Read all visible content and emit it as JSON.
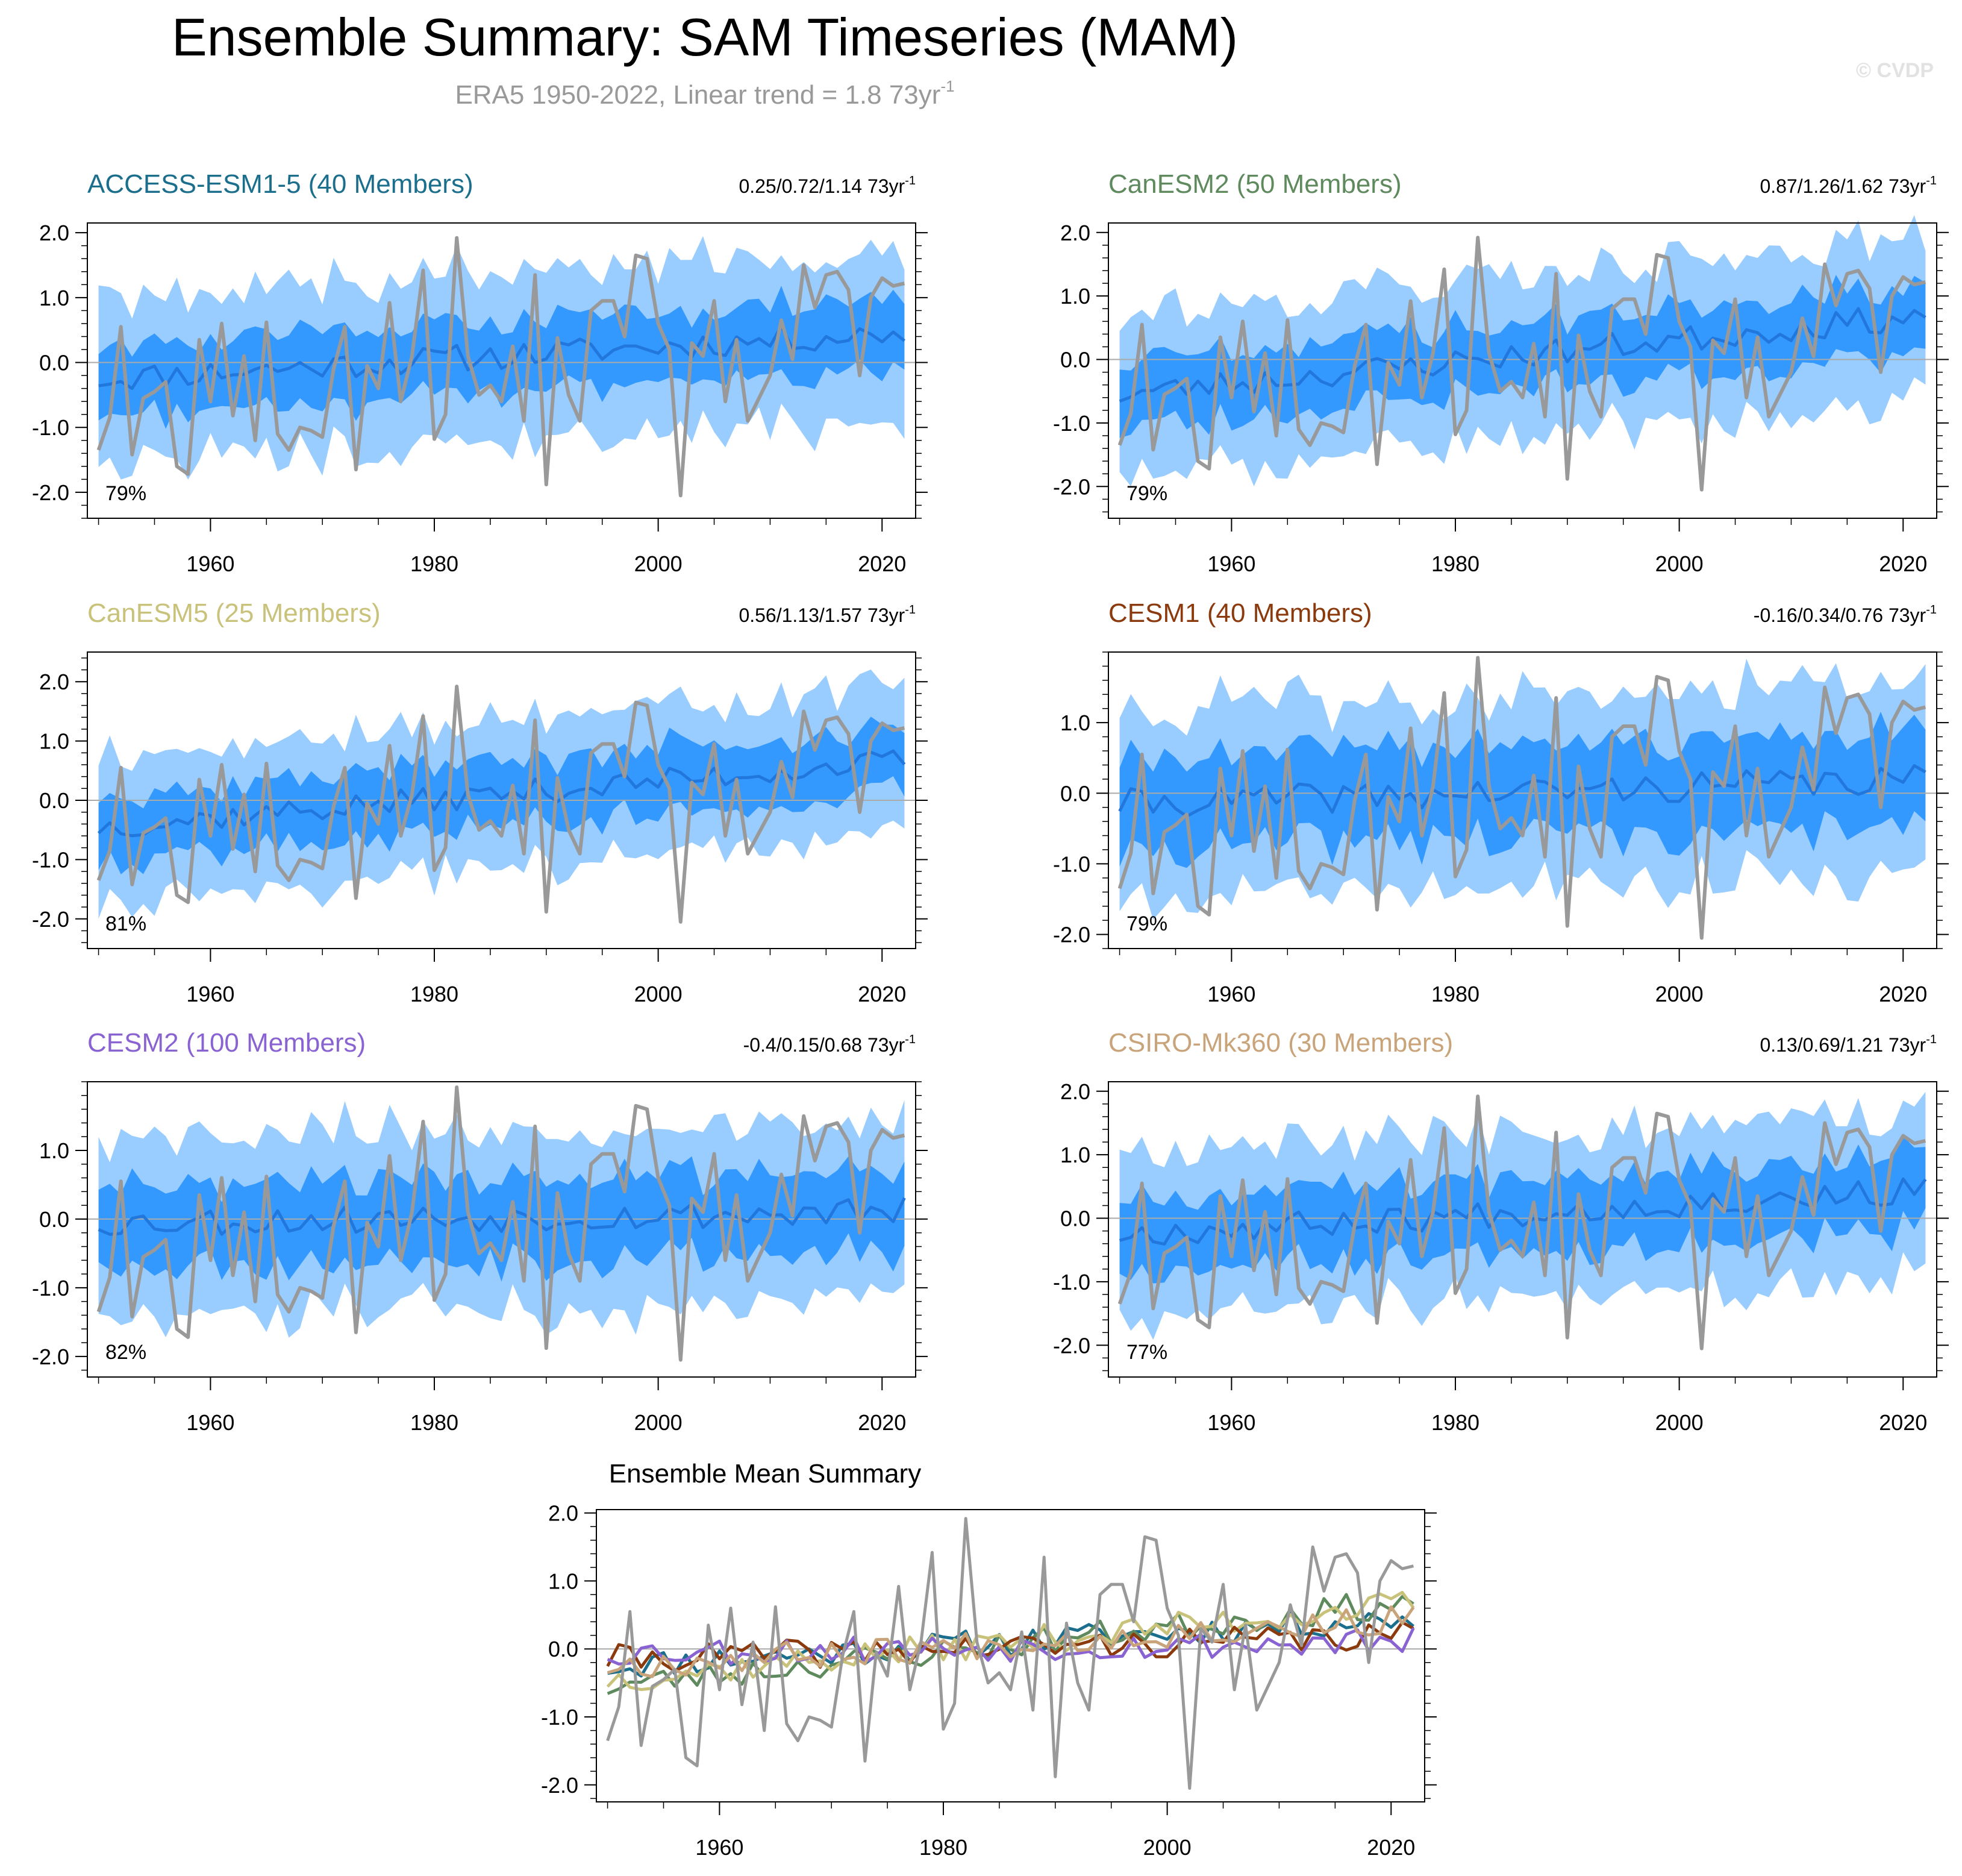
{
  "figure": {
    "title": "Ensemble Summary: SAM Timeseries (MAM)",
    "subtitle": "ERA5 1950-2022, Linear trend = 1.8 73yr",
    "subtitle_sup": "-1",
    "watermark": "© CVDP",
    "trend_unit": "73yr",
    "trend_unit_sup": "-1"
  },
  "colors": {
    "inner_band": "#3399FF",
    "outer_band": "#99CCFF",
    "ensemble_mean": "#2277DD",
    "observed": "#999999",
    "zero_line": "#AAAAAA"
  },
  "observed": {
    "name": "ERA5",
    "x": [
      1950,
      1951,
      1952,
      1953,
      1954,
      1955,
      1956,
      1957,
      1958,
      1959,
      1960,
      1961,
      1962,
      1963,
      1964,
      1965,
      1966,
      1967,
      1968,
      1969,
      1970,
      1971,
      1972,
      1973,
      1974,
      1975,
      1976,
      1977,
      1978,
      1979,
      1980,
      1981,
      1982,
      1983,
      1984,
      1985,
      1986,
      1987,
      1988,
      1989,
      1990,
      1991,
      1992,
      1993,
      1994,
      1995,
      1996,
      1997,
      1998,
      1999,
      2000,
      2001,
      2002,
      2003,
      2004,
      2005,
      2006,
      2007,
      2008,
      2009,
      2010,
      2011,
      2012,
      2013,
      2014,
      2015,
      2016,
      2017,
      2018,
      2019,
      2020,
      2021,
      2022
    ],
    "values": [
      -1.35,
      -0.85,
      0.55,
      -1.42,
      -0.55,
      -0.45,
      -0.3,
      -1.6,
      -1.72,
      0.35,
      -0.6,
      0.6,
      -0.82,
      0.1,
      -1.2,
      0.62,
      -1.1,
      -1.35,
      -1.0,
      -1.05,
      -1.15,
      -0.1,
      0.55,
      -1.65,
      -0.05,
      -0.4,
      0.92,
      -0.6,
      0.1,
      1.42,
      -1.18,
      -0.8,
      1.92,
      0.1,
      -0.5,
      -0.35,
      -0.6,
      0.25,
      -0.9,
      1.35,
      -1.88,
      0.38,
      -0.5,
      -0.9,
      0.8,
      0.95,
      0.95,
      0.4,
      1.65,
      1.6,
      0.6,
      0.2,
      -2.05,
      0.3,
      0.1,
      0.95,
      -0.6,
      0.35,
      -0.9,
      -0.55,
      -0.2,
      0.65,
      0.05,
      1.5,
      0.85,
      1.35,
      1.4,
      1.12,
      -0.2,
      1.0,
      1.3,
      1.18,
      1.22
    ]
  },
  "chart_data": [
    {
      "type": "line",
      "title": "ACCESS-ESM1-5 (40 Members)",
      "title_color": "#1B6E8C",
      "trend": "0.25/0.72/1.14",
      "percent": "79%",
      "ylim": [
        -2.4,
        2.15
      ],
      "yticks": [
        2.0,
        1.0,
        0.0,
        -1.0,
        -2.0
      ],
      "ytick_labels": [
        "2.0",
        "1.0",
        "0.0",
        "-1.0",
        "-2.0"
      ],
      "xlim": [
        1949,
        2023
      ],
      "xticks": [
        1960,
        1980,
        2000,
        2020
      ],
      "xtick_labels": [
        "1960",
        "1980",
        "2000",
        "2020"
      ],
      "mean_start": -0.25,
      "mean_slope": 0.0099,
      "mean_seed": 11,
      "inner_halfwidth": 0.55,
      "outer_halfwidth": 1.3,
      "band_seed": 101
    },
    {
      "type": "line",
      "title": "CanESM2 (50 Members)",
      "title_color": "#5E8A5E",
      "trend": "0.87/1.26/1.62",
      "percent": "79%",
      "ylim": [
        -2.5,
        2.15
      ],
      "yticks": [
        2.0,
        1.0,
        0.0,
        -1.0,
        -2.0
      ],
      "ytick_labels": [
        "2.0",
        "1.0",
        "0.0",
        "-1.0",
        "-2.0"
      ],
      "xlim": [
        1949,
        2023
      ],
      "xticks": [
        1960,
        1980,
        2000,
        2020
      ],
      "xtick_labels": [
        "1960",
        "1980",
        "2000",
        "2020"
      ],
      "mean_start": -0.55,
      "mean_slope": 0.0173,
      "mean_seed": 23,
      "inner_halfwidth": 0.55,
      "outer_halfwidth": 1.3,
      "band_seed": 202
    },
    {
      "type": "line",
      "title": "CanESM5 (25 Members)",
      "title_color": "#C9C27A",
      "trend": "0.56/1.13/1.57",
      "percent": "81%",
      "ylim": [
        -2.5,
        2.5
      ],
      "yticks": [
        2.0,
        1.0,
        0.0,
        -1.0,
        -2.0
      ],
      "ytick_labels": [
        "2.0",
        "1.0",
        "0.0",
        "-1.0",
        "-2.0"
      ],
      "xlim": [
        1949,
        2023
      ],
      "xticks": [
        1960,
        1980,
        2000,
        2020
      ],
      "xtick_labels": [
        "1960",
        "1980",
        "2000",
        "2020"
      ],
      "mean_start": -0.45,
      "mean_slope": 0.0155,
      "mean_seed": 37,
      "inner_halfwidth": 0.55,
      "outer_halfwidth": 1.25,
      "band_seed": 303
    },
    {
      "type": "line",
      "title": "CESM1 (40 Members)",
      "title_color": "#8B3A0E",
      "trend": "-0.16/0.34/0.76",
      "percent": "79%",
      "ylim": [
        -2.2,
        2.0
      ],
      "yticks": [
        1.0,
        0.0,
        -1.0,
        -2.0
      ],
      "ytick_labels": [
        "1.0",
        "0.0",
        "-1.0",
        "-2.0"
      ],
      "xlim": [
        1949,
        2023
      ],
      "xticks": [
        1960,
        1980,
        2000,
        2020
      ],
      "xtick_labels": [
        "1960",
        "1980",
        "2000",
        "2020"
      ],
      "mean_start": -0.15,
      "mean_slope": 0.0047,
      "mean_seed": 41,
      "inner_halfwidth": 0.65,
      "outer_halfwidth": 1.35,
      "band_seed": 404
    },
    {
      "type": "line",
      "title": "CESM2 (100 Members)",
      "title_color": "#8A63D2",
      "trend": "-0.4/0.15/0.68",
      "percent": "82%",
      "ylim": [
        -2.3,
        2.0
      ],
      "yticks": [
        1.0,
        0.0,
        -1.0,
        -2.0
      ],
      "ytick_labels": [
        "1.0",
        "0.0",
        "-1.0",
        "-2.0"
      ],
      "xlim": [
        1949,
        2023
      ],
      "xticks": [
        1960,
        1980,
        2000,
        2020
      ],
      "xtick_labels": [
        "1960",
        "1980",
        "2000",
        "2020"
      ],
      "mean_start": -0.05,
      "mean_slope": 0.0021,
      "mean_seed": 53,
      "inner_halfwidth": 0.6,
      "outer_halfwidth": 1.3,
      "band_seed": 505
    },
    {
      "type": "line",
      "title": "CSIRO-Mk360 (30 Members)",
      "title_color": "#C9A47A",
      "trend": "0.13/0.69/1.21",
      "percent": "77%",
      "ylim": [
        -2.5,
        2.15
      ],
      "yticks": [
        2.0,
        1.0,
        0.0,
        -1.0,
        -2.0
      ],
      "ytick_labels": [
        "2.0",
        "1.0",
        "0.0",
        "-1.0",
        "-2.0"
      ],
      "xlim": [
        1949,
        2023
      ],
      "xticks": [
        1960,
        1980,
        2000,
        2020
      ],
      "xtick_labels": [
        "1960",
        "1980",
        "2000",
        "2020"
      ],
      "mean_start": -0.25,
      "mean_slope": 0.0095,
      "mean_seed": 67,
      "inner_halfwidth": 0.6,
      "outer_halfwidth": 1.3,
      "band_seed": 606
    },
    {
      "type": "line",
      "title": "Ensemble Mean Summary",
      "title_color": "#000000",
      "ylim": [
        -2.25,
        2.05
      ],
      "yticks": [
        2.0,
        1.0,
        0.0,
        -1.0,
        -2.0
      ],
      "ytick_labels": [
        "2.0",
        "1.0",
        "0.0",
        "-1.0",
        "-2.0"
      ],
      "xlim": [
        1949,
        2023
      ],
      "xticks": [
        1960,
        1980,
        2000,
        2020
      ],
      "xtick_labels": [
        "1960",
        "1980",
        "2000",
        "2020"
      ],
      "series": [
        {
          "name": "ERA5",
          "color": "#999999"
        },
        {
          "name": "ACCESS-ESM1-5",
          "color": "#1B6E8C"
        },
        {
          "name": "CanESM2",
          "color": "#5E8A5E"
        },
        {
          "name": "CanESM5",
          "color": "#C9C27A"
        },
        {
          "name": "CESM1",
          "color": "#8B3A0E"
        },
        {
          "name": "CESM2",
          "color": "#8A63D2"
        },
        {
          "name": "CSIRO-Mk360",
          "color": "#C9A47A"
        }
      ]
    }
  ]
}
